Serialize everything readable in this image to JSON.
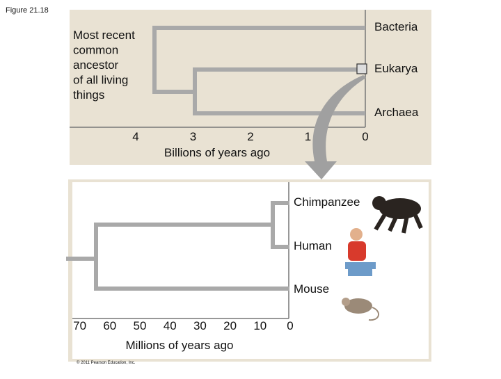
{
  "figure_label": "Figure 21.18",
  "top_panel": {
    "root_label": [
      "Most recent",
      "common",
      "ancestor",
      "of all living",
      "things"
    ],
    "taxa": [
      "Bacteria",
      "Eukarya",
      "Archaea"
    ],
    "ticks": [
      4,
      3,
      2,
      1,
      0
    ],
    "axis_label": "Billions of years ago"
  },
  "bottom_panel": {
    "taxa": [
      "Chimpanzee",
      "Human",
      "Mouse"
    ],
    "ticks": [
      70,
      60,
      50,
      40,
      30,
      20,
      10,
      0
    ],
    "axis_label": "Millions of years ago",
    "copyright": "© 2011 Pearson Education, Inc."
  }
}
